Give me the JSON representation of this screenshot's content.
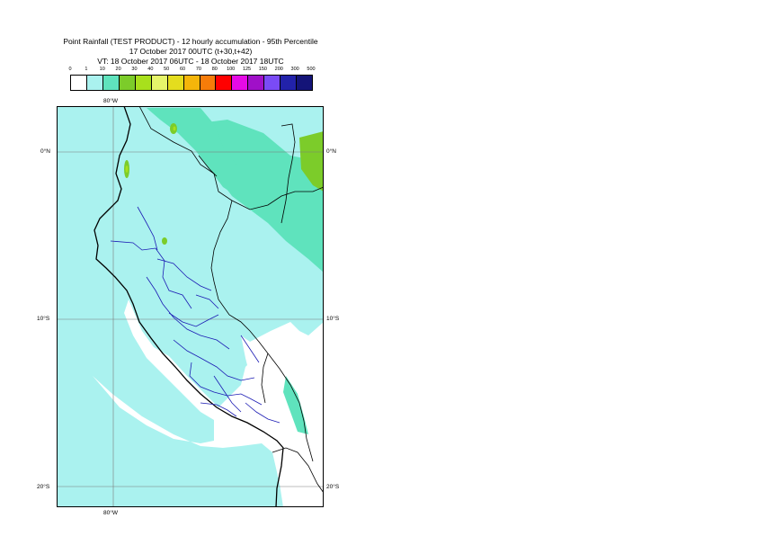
{
  "title": {
    "line1": "Point Rainfall (TEST PRODUCT) - 12 hourly accumulation - 95th Percentile",
    "line2": "17 October 2017 00UTC (t+30,t+42)",
    "line3": "VT: 18 October 2017 06UTC - 18 October 2017 18UTC"
  },
  "legend": {
    "labels": [
      "0",
      "1",
      "10",
      "20",
      "30",
      "40",
      "50",
      "60",
      "70",
      "80",
      "100",
      "125",
      "150",
      "200",
      "300",
      "500"
    ],
    "colors": [
      "#ffffff",
      "#aaf2ef",
      "#5fe3bd",
      "#7ccc2a",
      "#a8e01c",
      "#e6f56a",
      "#e4dd1e",
      "#f5b50a",
      "#f77c09",
      "#ff0000",
      "#e60ae6",
      "#a010c8",
      "#7a4bf5",
      "#2222aa",
      "#141478"
    ]
  },
  "map": {
    "lon_label_top": "80°W",
    "lon_label_bottom": "80°W",
    "lat_labels_left": [
      "0°N",
      "10°S",
      "20°S"
    ],
    "lat_labels_right": [
      "0°N",
      "10°S",
      "20°S"
    ],
    "colors": {
      "sea": "#aaf2ef",
      "land": "#ffffff",
      "rain_10_20": "#5fe3bd",
      "rain_20_30": "#7ccc2a",
      "rain_30_40": "#a8e01c",
      "coast": "#000000",
      "admin": "#1c1cb4",
      "grid": "#7a7a7a"
    }
  }
}
